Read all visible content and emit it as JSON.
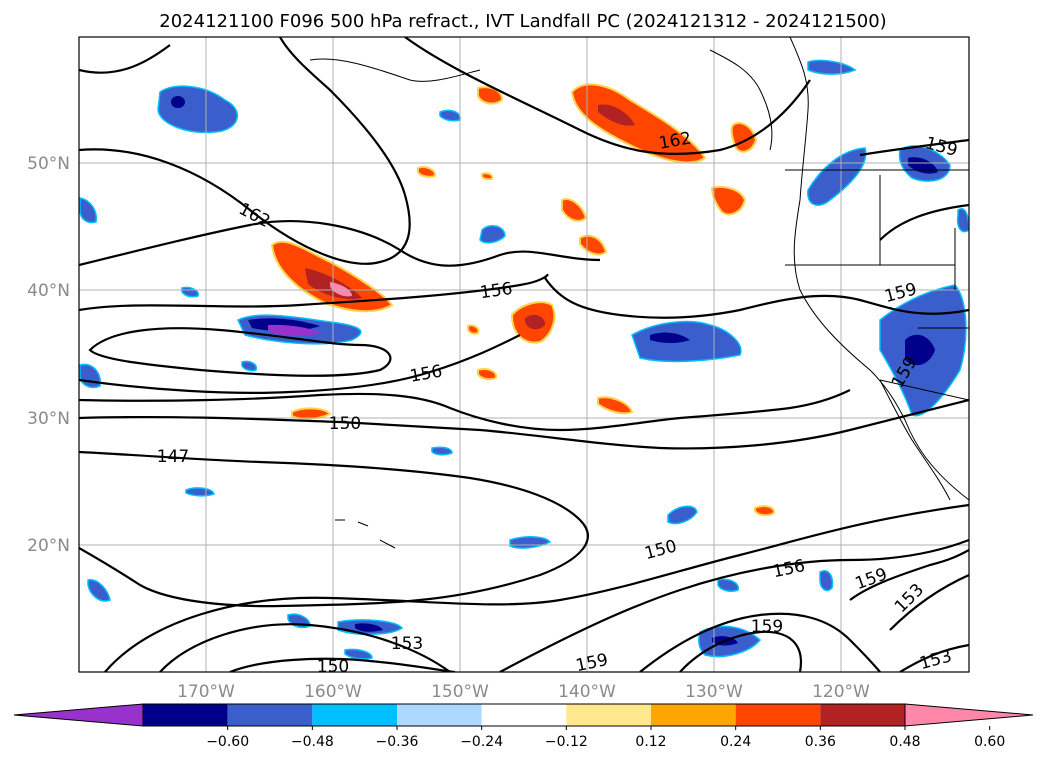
{
  "title": "2024121100 F096 500 hPa refract., IVT Landfall PC (2024121312 - 2024121500)",
  "map": {
    "lon_labels": [
      "170°W",
      "160°W",
      "150°W",
      "140°W",
      "130°W",
      "120°W"
    ],
    "lat_labels": [
      "50°N",
      "40°N",
      "30°N",
      "20°N"
    ],
    "contour_labels": [
      "162",
      "162",
      "159",
      "156",
      "159",
      "156",
      "150",
      "147",
      "150",
      "156",
      "159",
      "153",
      "153",
      "159",
      "150",
      "159",
      "153",
      "159"
    ],
    "colors": {
      "contour": "#000000",
      "grid": "#b0b0b0",
      "coast": "#000000"
    }
  },
  "colorbar": {
    "tick_labels": [
      "−0.60",
      "−0.48",
      "−0.36",
      "−0.24",
      "−0.12",
      "0.12",
      "0.24",
      "0.36",
      "0.48",
      "0.60"
    ],
    "colors": [
      "#9932cc",
      "#00008b",
      "#3a5fcd",
      "#00bfff",
      "#add8ff",
      "#ffffff",
      "#ffe88c",
      "#ffa500",
      "#ff4500",
      "#b22222",
      "#ff88aa"
    ]
  }
}
